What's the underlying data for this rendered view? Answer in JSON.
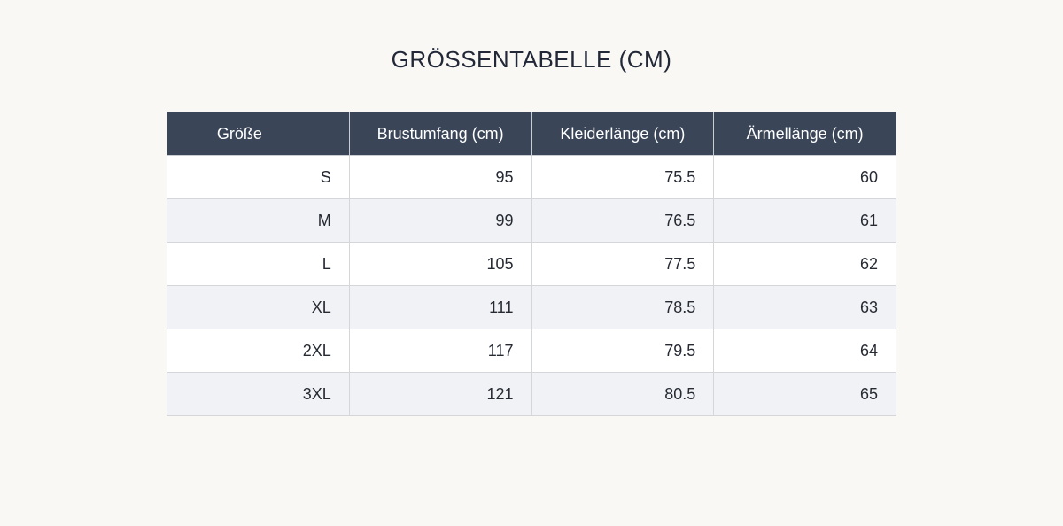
{
  "title": "GRÖSSENTABELLE (CM)",
  "table": {
    "headers": [
      "Größe",
      "Brustumfang (cm)",
      "Kleiderlänge (cm)",
      "Ärmellänge (cm)"
    ],
    "rows": [
      [
        "S",
        "95",
        "75.5",
        "60"
      ],
      [
        "M",
        "99",
        "76.5",
        "61"
      ],
      [
        "L",
        "105",
        "77.5",
        "62"
      ],
      [
        "XL",
        "111",
        "78.5",
        "63"
      ],
      [
        "2XL",
        "117",
        "79.5",
        "64"
      ],
      [
        "3XL",
        "121",
        "80.5",
        "65"
      ]
    ]
  },
  "colors": {
    "background": "#f9f8f5",
    "header_bg": "#3a4558",
    "header_text": "#ffffff",
    "row_alt": "#f1f2f5"
  }
}
